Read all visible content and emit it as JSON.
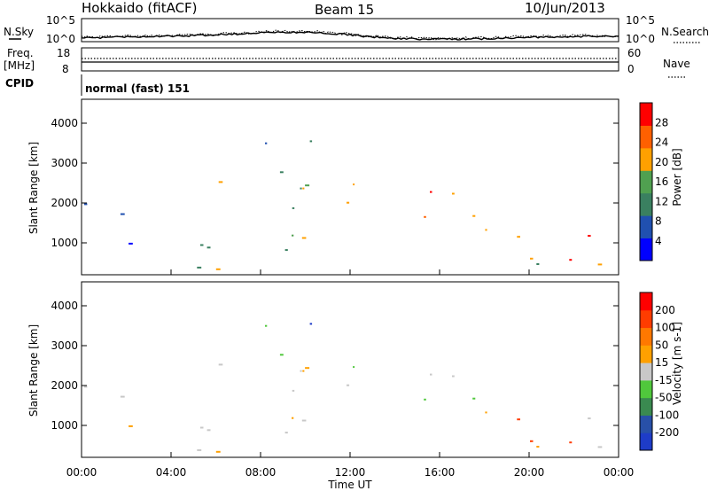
{
  "header": {
    "station": "Hokkaido (fitACF)",
    "beam": "Beam 15",
    "date": "10/Jun/2013"
  },
  "noise_panel": {
    "left_label": "N.Sky",
    "right_label": "N.Search",
    "left_ticks": [
      "10^5",
      "10^0"
    ],
    "right_ticks": [
      "10^5",
      "10^0"
    ]
  },
  "freq_panel": {
    "left_label_1": "Freq.",
    "left_label_2": "[MHz]",
    "left_ticks": [
      "18",
      "8"
    ],
    "right_label": "Nave",
    "right_ticks": [
      "60",
      "0"
    ]
  },
  "cpid_panel": {
    "label": "CPID",
    "value": "normal (fast) 151"
  },
  "chart_data": [
    {
      "type": "heatmap",
      "name": "power",
      "ylabel": "Slant Range [km]",
      "ylim": [
        200,
        4600
      ],
      "yticks": [
        "1000",
        "2000",
        "3000",
        "4000"
      ],
      "xlim": [
        0,
        24
      ],
      "colorbar_label": "Power [dB]",
      "colorbar_ticks": [
        "4",
        "8",
        "12",
        "16",
        "20",
        "24",
        "28"
      ],
      "colorbar_colors": [
        "#0000ff",
        "#2050b0",
        "#3a8060",
        "#50a050",
        "#ffa000",
        "#ff6000",
        "#ff0000"
      ]
    },
    {
      "type": "heatmap",
      "name": "velocity",
      "ylabel": "Slant Range [km]",
      "ylim": [
        200,
        4600
      ],
      "yticks": [
        "1000",
        "2000",
        "3000",
        "4000"
      ],
      "xlim": [
        0,
        24
      ],
      "xlabel": "Time UT",
      "xticks": [
        "00:00",
        "04:00",
        "08:00",
        "12:00",
        "16:00",
        "20:00",
        "00:00"
      ],
      "colorbar_label": "Velocity [m s-1]",
      "colorbar_ticks": [
        "200",
        "100",
        "50",
        "15",
        "-15",
        "-50",
        "-100",
        "-200"
      ],
      "colorbar_colors": [
        "#1e3cc8",
        "#2850a8",
        "#3a8a50",
        "#50c83c",
        "#c8c8c8",
        "#ffa000",
        "#ff7800",
        "#ff3c00",
        "#ff0000"
      ]
    }
  ]
}
